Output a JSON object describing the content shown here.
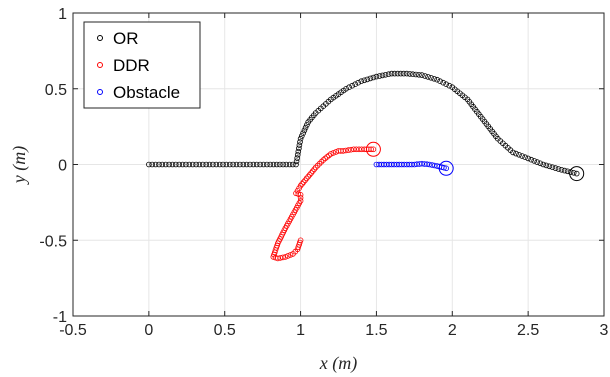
{
  "chart_data": {
    "type": "scatter",
    "title": "",
    "xlabel": "x (m)",
    "ylabel": "y (m)",
    "xlim": [
      -0.5,
      3
    ],
    "ylim": [
      -1,
      1
    ],
    "xticks": [
      -0.5,
      0,
      0.5,
      1,
      1.5,
      2,
      2.5,
      3
    ],
    "yticks": [
      -1,
      -0.5,
      0,
      0.5,
      1
    ],
    "xtick_labels": [
      "-0.5",
      "0",
      "0.5",
      "1",
      "1.5",
      "2",
      "2.5",
      "3"
    ],
    "ytick_labels": [
      "-1",
      "-0.5",
      "0",
      "0.5",
      "1"
    ],
    "grid": true,
    "legend_position": "top-left",
    "series": [
      {
        "name": "OR",
        "color": "#000000",
        "marker": "circle-open",
        "end_marker": "large-circle-open",
        "x": [
          0,
          0.2,
          0.4,
          0.6,
          0.8,
          0.97,
          1.0,
          1.05,
          1.1,
          1.2,
          1.3,
          1.4,
          1.5,
          1.6,
          1.7,
          1.8,
          1.9,
          2.0,
          2.1,
          2.2,
          2.3,
          2.4,
          2.5,
          2.6,
          2.7,
          2.82
        ],
        "y": [
          0,
          0,
          0,
          0,
          0,
          0,
          0.17,
          0.28,
          0.34,
          0.43,
          0.5,
          0.55,
          0.58,
          0.6,
          0.6,
          0.59,
          0.56,
          0.51,
          0.43,
          0.3,
          0.17,
          0.08,
          0.04,
          0.0,
          -0.03,
          -0.06
        ]
      },
      {
        "name": "DDR",
        "color": "#ff0000",
        "marker": "circle-open",
        "end_marker": "large-circle-open",
        "x": [
          1.0,
          0.98,
          0.95,
          0.9,
          0.85,
          0.82,
          0.85,
          0.9,
          0.95,
          1.0,
          1.0,
          0.97,
          1.0,
          1.05,
          1.1,
          1.15,
          1.2,
          1.25,
          1.28,
          1.35,
          1.42,
          1.48
        ],
        "y": [
          -0.5,
          -0.56,
          -0.59,
          -0.61,
          -0.62,
          -0.61,
          -0.52,
          -0.42,
          -0.33,
          -0.24,
          -0.2,
          -0.19,
          -0.14,
          -0.08,
          -0.02,
          0.03,
          0.07,
          0.09,
          0.09,
          0.1,
          0.1,
          0.1
        ]
      },
      {
        "name": "Obstacle",
        "color": "#0000ff",
        "marker": "circle-open",
        "end_marker": "large-circle-open",
        "x": [
          1.5,
          1.55,
          1.6,
          1.65,
          1.7,
          1.75,
          1.8,
          1.85,
          1.9,
          1.96
        ],
        "y": [
          0,
          0,
          0,
          0,
          0,
          0,
          0.005,
          0,
          -0.01,
          -0.025
        ]
      }
    ]
  }
}
